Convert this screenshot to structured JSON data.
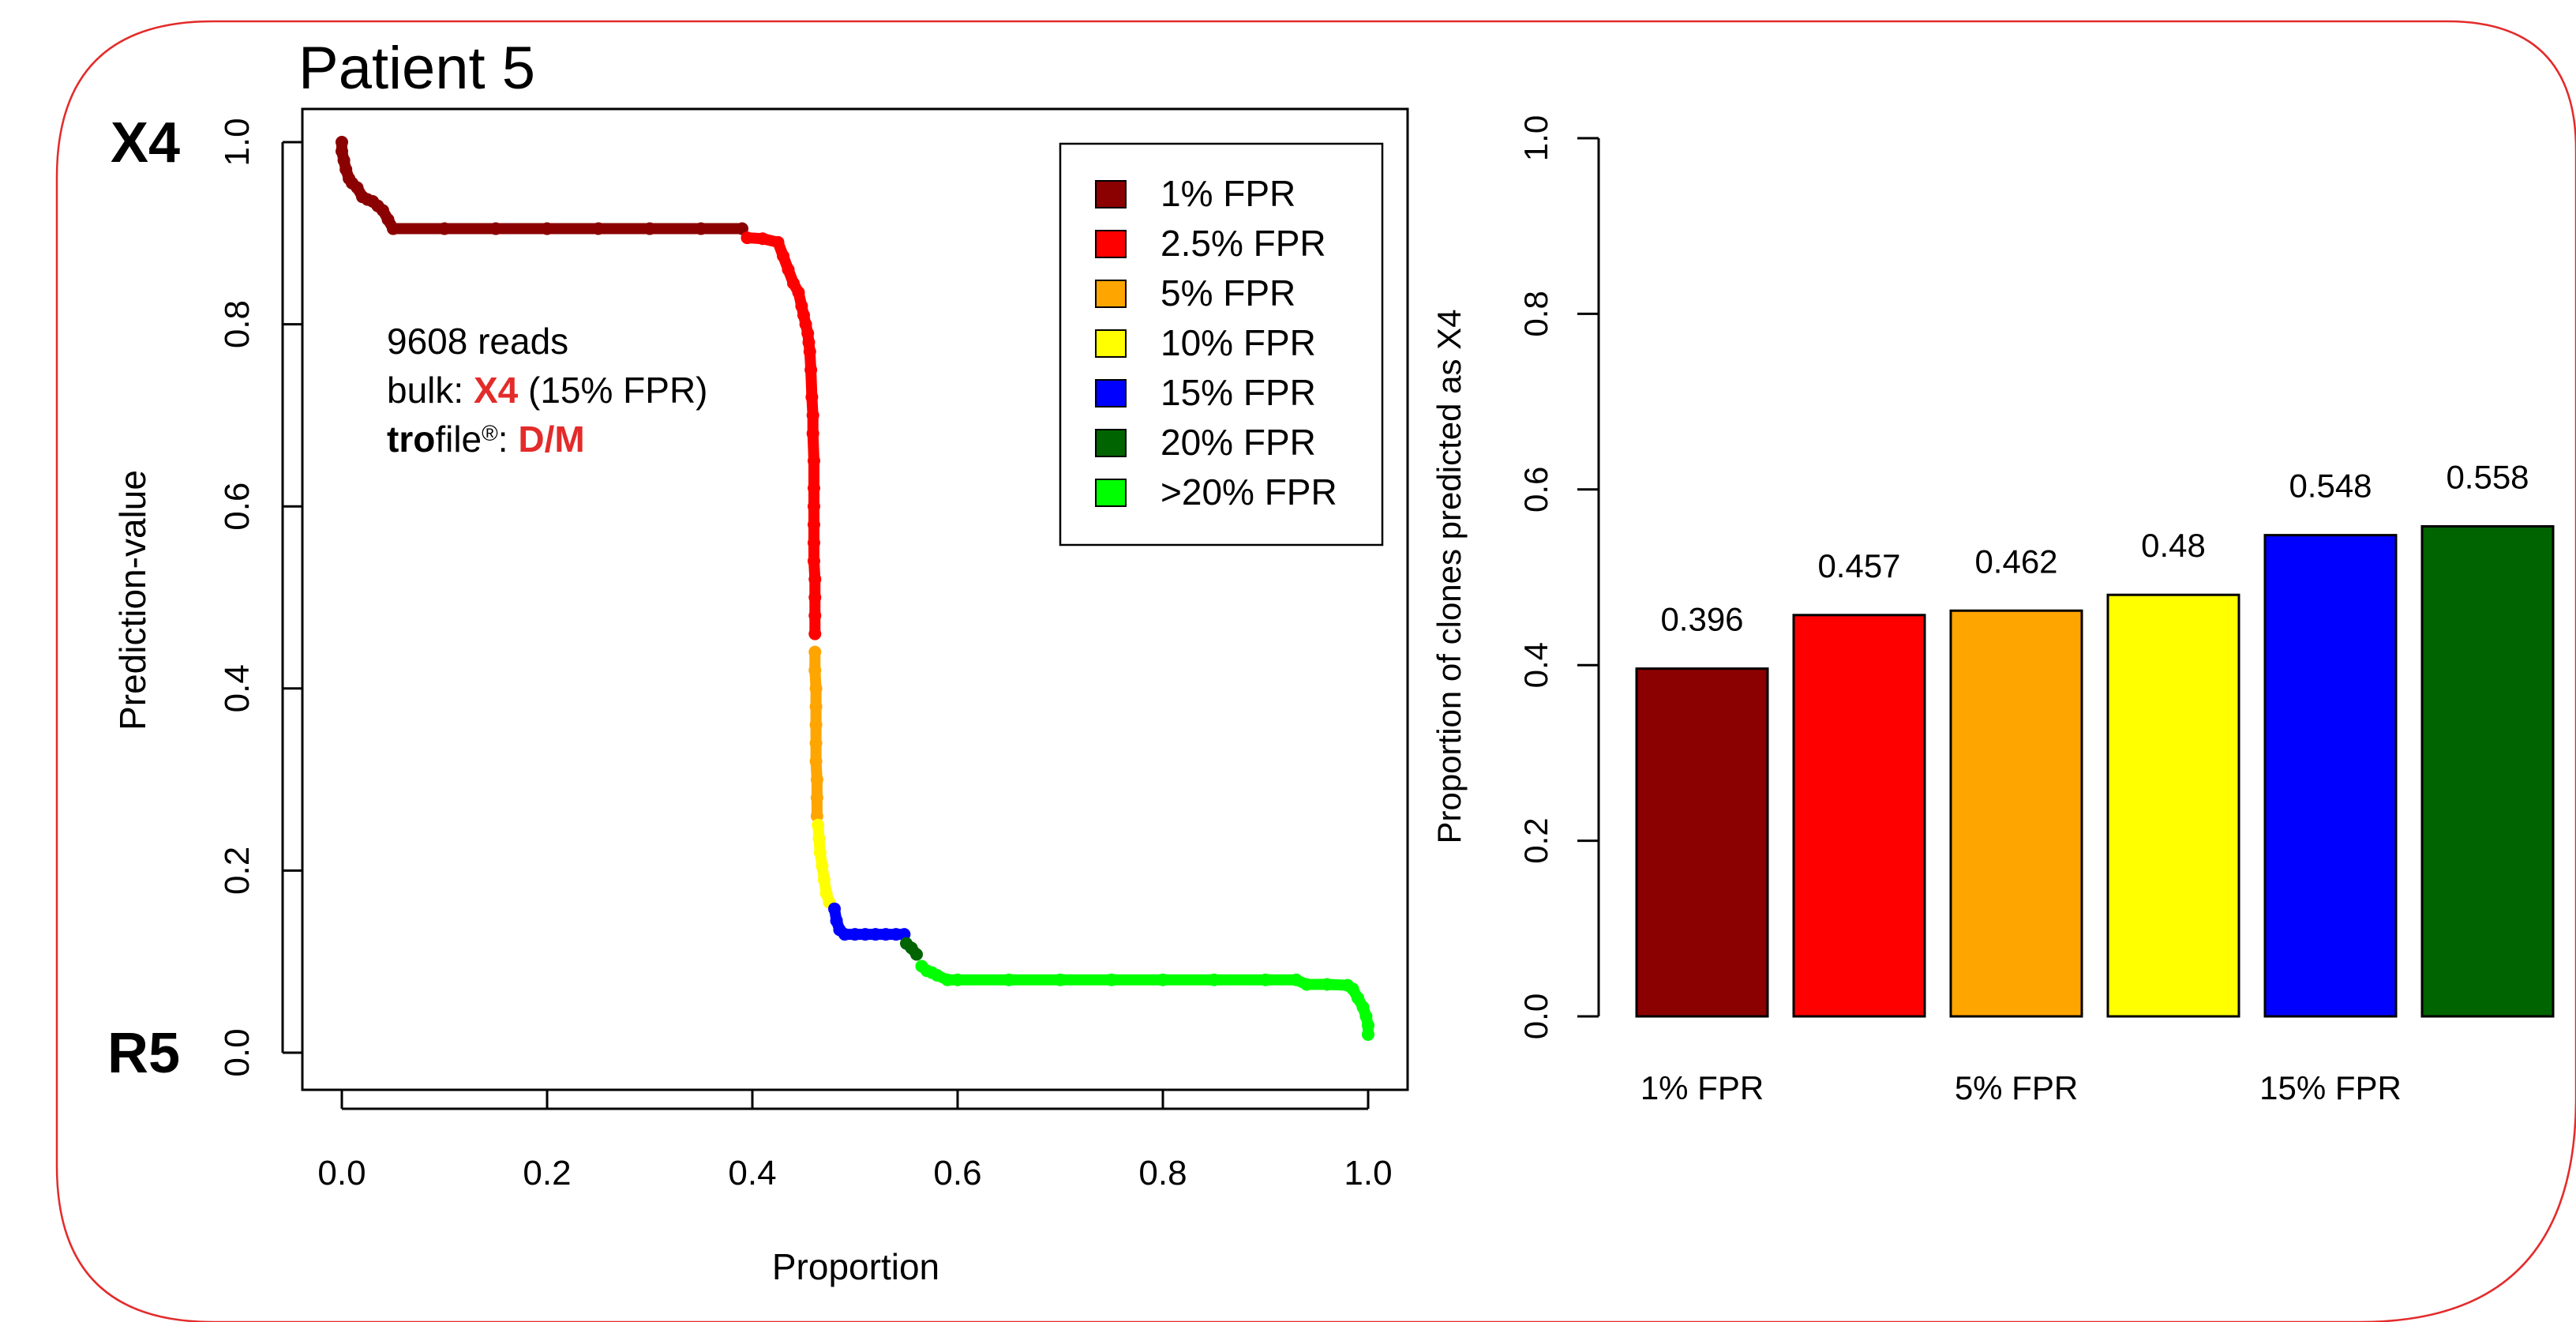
{
  "frame": {
    "border_color": "#e32b2b"
  },
  "chart_data": [
    {
      "type": "scatter",
      "title": "Patient 5",
      "xlabel": "Proportion",
      "ylabel": "Prediction-value",
      "xlim": [
        0,
        1
      ],
      "ylim": [
        0,
        1
      ],
      "x_ticks": [
        "0.0",
        "0.2",
        "0.4",
        "0.6",
        "0.8",
        "1.0"
      ],
      "y_ticks": [
        "0.0",
        "0.2",
        "0.4",
        "0.6",
        "0.8",
        "1.0"
      ],
      "y_end_labels": {
        "top": "X4",
        "bottom": "R5"
      },
      "grid": false,
      "legend_position": "top-right",
      "legend": [
        {
          "label": "1% FPR",
          "color": "#8b0000"
        },
        {
          "label": "2.5% FPR",
          "color": "#ff0000"
        },
        {
          "label": "5% FPR",
          "color": "#ffa500"
        },
        {
          "label": "10% FPR",
          "color": "#ffff00"
        },
        {
          "label": "15% FPR",
          "color": "#0000ff"
        },
        {
          "label": "20% FPR",
          "color": "#006400"
        },
        {
          "label": ">20% FPR",
          "color": "#00ff00"
        }
      ],
      "annotation": {
        "reads": "9608 reads",
        "bulk_prefix": "bulk: ",
        "bulk_value": "X4",
        "bulk_suffix": " (15% FPR)",
        "trofile_bold": "tro",
        "trofile_rest": "file",
        "trofile_reg": "®",
        "trofile_colon": ": ",
        "trofile_value": "D/M",
        "highlight_color": "#e32b2b"
      },
      "series": [
        {
          "name": "1% FPR",
          "color": "#8b0000",
          "points": [
            [
              0.0,
              1.0
            ],
            [
              0.0,
              0.99
            ],
            [
              0.002,
              0.98
            ],
            [
              0.004,
              0.97
            ],
            [
              0.007,
              0.96
            ],
            [
              0.01,
              0.955
            ],
            [
              0.015,
              0.95
            ],
            [
              0.02,
              0.94
            ],
            [
              0.025,
              0.937
            ],
            [
              0.03,
              0.935
            ],
            [
              0.035,
              0.93
            ],
            [
              0.04,
              0.925
            ],
            [
              0.045,
              0.915
            ],
            [
              0.05,
              0.905
            ],
            [
              0.1,
              0.905
            ],
            [
              0.15,
              0.905
            ],
            [
              0.2,
              0.905
            ],
            [
              0.25,
              0.905
            ],
            [
              0.3,
              0.905
            ],
            [
              0.35,
              0.905
            ],
            [
              0.39,
              0.905
            ]
          ]
        },
        {
          "name": "2.5% FPR",
          "color": "#ff0000",
          "points": [
            [
              0.395,
              0.895
            ],
            [
              0.41,
              0.894
            ],
            [
              0.425,
              0.89
            ],
            [
              0.43,
              0.875
            ],
            [
              0.435,
              0.86
            ],
            [
              0.44,
              0.845
            ],
            [
              0.445,
              0.835
            ],
            [
              0.448,
              0.82
            ],
            [
              0.45,
              0.81
            ],
            [
              0.452,
              0.8
            ],
            [
              0.454,
              0.79
            ],
            [
              0.455,
              0.78
            ],
            [
              0.456,
              0.77
            ],
            [
              0.457,
              0.75
            ],
            [
              0.458,
              0.72
            ],
            [
              0.459,
              0.7
            ],
            [
              0.459,
              0.68
            ],
            [
              0.46,
              0.65
            ],
            [
              0.46,
              0.62
            ],
            [
              0.46,
              0.6
            ],
            [
              0.46,
              0.58
            ],
            [
              0.46,
              0.56
            ],
            [
              0.46,
              0.54
            ],
            [
              0.461,
              0.52
            ],
            [
              0.461,
              0.5
            ],
            [
              0.461,
              0.48
            ],
            [
              0.461,
              0.46
            ]
          ]
        },
        {
          "name": "5% FPR",
          "color": "#ffa500",
          "points": [
            [
              0.461,
              0.44
            ],
            [
              0.461,
              0.42
            ],
            [
              0.462,
              0.4
            ],
            [
              0.462,
              0.38
            ],
            [
              0.462,
              0.36
            ],
            [
              0.462,
              0.34
            ],
            [
              0.462,
              0.32
            ],
            [
              0.463,
              0.3
            ],
            [
              0.463,
              0.28
            ],
            [
              0.463,
              0.26
            ]
          ]
        },
        {
          "name": "10% FPR",
          "color": "#ffff00",
          "points": [
            [
              0.464,
              0.25
            ],
            [
              0.465,
              0.235
            ],
            [
              0.466,
              0.22
            ],
            [
              0.468,
              0.205
            ],
            [
              0.47,
              0.19
            ],
            [
              0.472,
              0.175
            ],
            [
              0.475,
              0.165
            ]
          ]
        },
        {
          "name": "15% FPR",
          "color": "#0000ff",
          "points": [
            [
              0.48,
              0.158
            ],
            [
              0.482,
              0.145
            ],
            [
              0.485,
              0.135
            ],
            [
              0.49,
              0.13
            ],
            [
              0.5,
              0.13
            ],
            [
              0.51,
              0.13
            ],
            [
              0.52,
              0.13
            ],
            [
              0.53,
              0.13
            ],
            [
              0.54,
              0.13
            ],
            [
              0.548,
              0.13
            ]
          ]
        },
        {
          "name": "20% FPR",
          "color": "#006400",
          "points": [
            [
              0.55,
              0.12
            ],
            [
              0.555,
              0.115
            ],
            [
              0.56,
              0.108
            ]
          ]
        },
        {
          "name": ">20% FPR",
          "color": "#00ff00",
          "points": [
            [
              0.565,
              0.095
            ],
            [
              0.57,
              0.09
            ],
            [
              0.575,
              0.088
            ],
            [
              0.58,
              0.085
            ],
            [
              0.59,
              0.08
            ],
            [
              0.6,
              0.08
            ],
            [
              0.65,
              0.08
            ],
            [
              0.7,
              0.08
            ],
            [
              0.75,
              0.08
            ],
            [
              0.8,
              0.08
            ],
            [
              0.85,
              0.08
            ],
            [
              0.9,
              0.08
            ],
            [
              0.93,
              0.08
            ],
            [
              0.94,
              0.075
            ],
            [
              0.96,
              0.075
            ],
            [
              0.98,
              0.074
            ],
            [
              0.985,
              0.07
            ],
            [
              0.99,
              0.06
            ],
            [
              0.995,
              0.05
            ],
            [
              0.998,
              0.04
            ],
            [
              1.0,
              0.03
            ],
            [
              1.0,
              0.02
            ]
          ]
        }
      ]
    },
    {
      "type": "bar",
      "ylabel": "Proportion of clones predicted as X4",
      "ylim": [
        0,
        1
      ],
      "y_ticks": [
        "0.0",
        "0.2",
        "0.4",
        "0.6",
        "0.8",
        "1.0"
      ],
      "categories": [
        "1% FPR",
        "2.5% FPR",
        "5% FPR",
        "10% FPR",
        "15% FPR",
        "20% FPR"
      ],
      "shown_category_labels": [
        "1% FPR",
        "5% FPR",
        "15% FPR"
      ],
      "values": [
        0.396,
        0.457,
        0.462,
        0.48,
        0.548,
        0.558
      ],
      "value_labels": [
        "0.396",
        "0.457",
        "0.462",
        "0.48",
        "0.548",
        "0.558"
      ],
      "colors": [
        "#8b0000",
        "#ff0000",
        "#ffa500",
        "#ffff00",
        "#0000ff",
        "#006400"
      ],
      "grid": false
    }
  ]
}
